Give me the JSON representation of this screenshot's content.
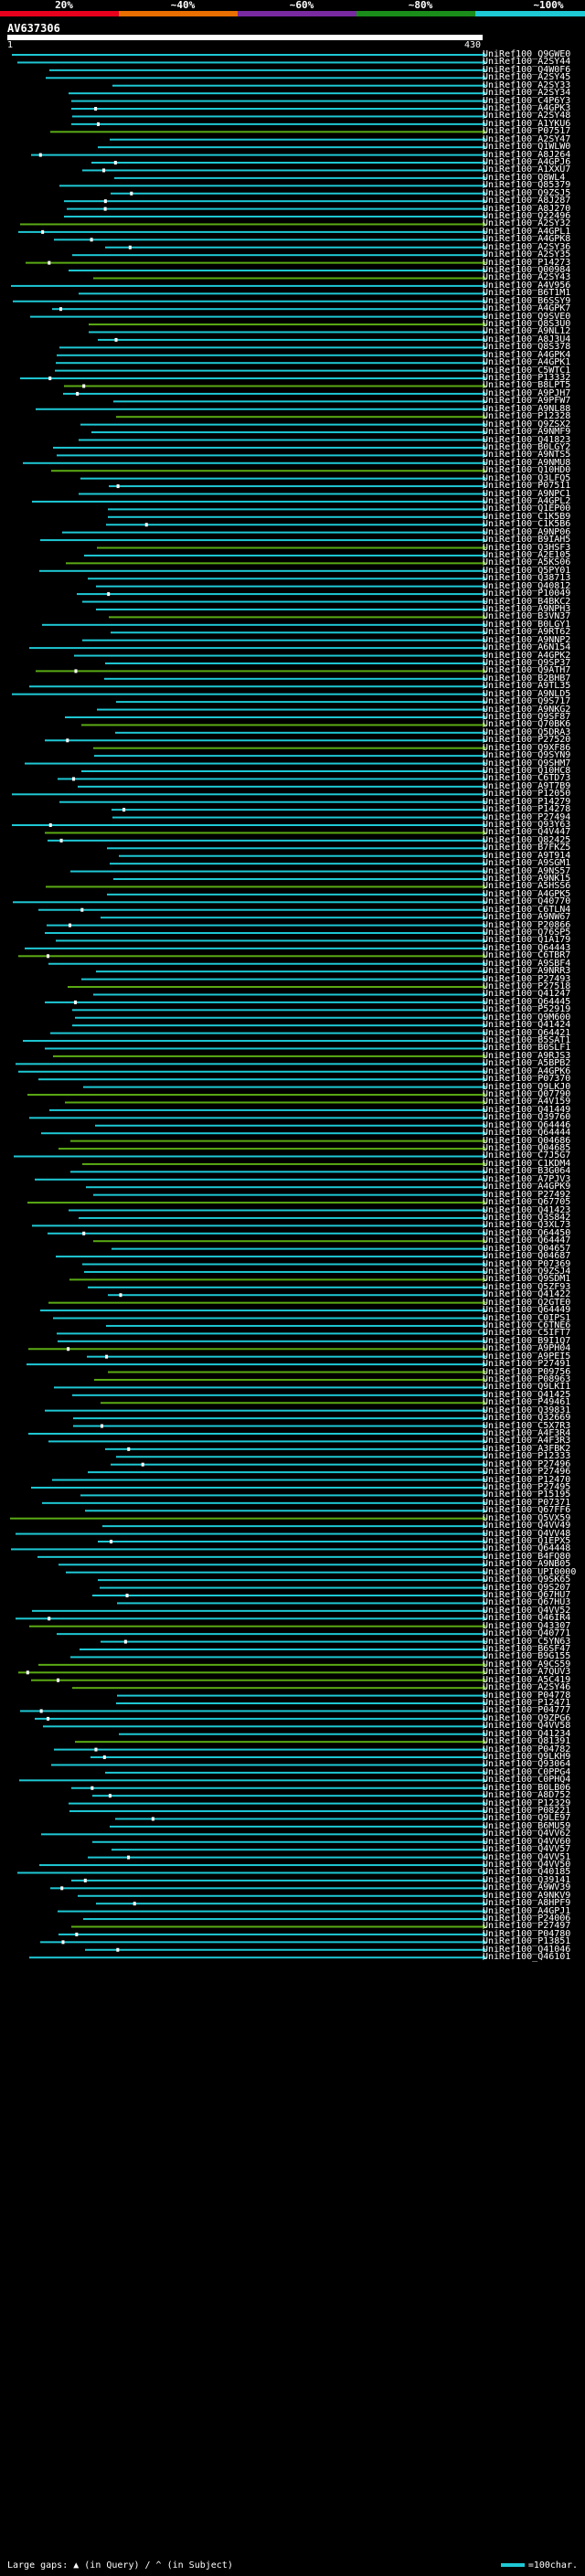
{
  "legend": {
    "labels": [
      "20%",
      "~40%",
      "~60%",
      "~80%",
      "~100%"
    ],
    "colors": [
      "#e8001c",
      "#e86f00",
      "#7a2aa0",
      "#1a8c1a",
      "#1ec8d4"
    ]
  },
  "query": {
    "title": "AV637306",
    "start": "1",
    "end": "430"
  },
  "colors": {
    "high": "#1ec8d4",
    "low": "#5aaa14"
  },
  "hits": [
    "UniRef100_Q9GWE0",
    "UniRef100_A2SY44",
    "UniRef100_Q4W0F6",
    "UniRef100_A2SY45",
    "UniRef100_A2SY33",
    "UniRef100_A2SY34",
    "UniRef100_C4P6Y3",
    "UniRef100_A4GPK3",
    "UniRef100_A2SY48",
    "UniRef100_A1YKU6",
    "UniRef100_P07517",
    "UniRef100_A2SY47",
    "UniRef100_Q1WLW0",
    "UniRef100_A8J264",
    "UniRef100_A4GPJ6",
    "UniRef100_A1XXU7",
    "UniRef100_Q8WL4",
    "UniRef100_Q85379",
    "UniRef100_Q9ZSJ5",
    "UniRef100_A8J287",
    "UniRef100_A8J270",
    "UniRef100_Q22496",
    "UniRef100_A2SY32",
    "UniRef100_A4GPL1",
    "UniRef100_A4GPK8",
    "UniRef100_A2SY36",
    "UniRef100_A2SY35",
    "UniRef100_P14273",
    "UniRef100_Q00984",
    "UniRef100_A2SY43",
    "UniRef100_A4V956",
    "UniRef100_B6T1M1",
    "UniRef100_B6SSY9",
    "UniRef100_A4GPK7",
    "UniRef100_Q9SVE0",
    "UniRef100_Q8S3U0",
    "UniRef100_A9NL12",
    "UniRef100_A8J3U4",
    "UniRef100_Q8S378",
    "UniRef100_A4GPK4",
    "UniRef100_A4GPK1",
    "UniRef100_C5WTC1",
    "UniRef100_P13332",
    "UniRef100_B8LPT5",
    "UniRef100_A9PJH7",
    "UniRef100_A9PFW7",
    "UniRef100_A9NL88",
    "UniRef100_P12328",
    "UniRef100_Q9ZSX2",
    "UniRef100_A9NMF9",
    "UniRef100_Q41823",
    "UniRef100_B0LGY2",
    "UniRef100_A9NTS5",
    "UniRef100_A9NMU8",
    "UniRef100_Q10HD0",
    "UniRef100_Q3LFQ5",
    "UniRef100_P07511",
    "UniRef100_A9NPC1",
    "UniRef100_A4GPL2",
    "UniRef100_Q1EP00",
    "UniRef100_C1K5B9",
    "UniRef100_C1K5B6",
    "UniRef100_A9NP06",
    "UniRef100_B9IAH5",
    "UniRef100_Q3HSF3",
    "UniRef100_A2E105",
    "UniRef100_A5KS06",
    "UniRef100_Q5PY01",
    "UniRef100_Q38713",
    "UniRef100_Q40812",
    "UniRef100_P10049",
    "UniRef100_B4BKC2",
    "UniRef100_A9NPH3",
    "UniRef100_B3VN37",
    "UniRef100_B0LGY1",
    "UniRef100_A9RT62",
    "UniRef100_A9NNP2",
    "UniRef100_A6N154",
    "UniRef100_A4GPK2",
    "UniRef100_Q9SP37",
    "UniRef100_Q9ATH7",
    "UniRef100_B2BHB7",
    "UniRef100_A9TL35",
    "UniRef100_A9NLD5",
    "UniRef100_Q9S717",
    "UniRef100_A9NKG2",
    "UniRef100_Q9SF87",
    "UniRef100_Q70BK6",
    "UniRef100_Q5DRA3",
    "UniRef100_P27520",
    "UniRef100_Q9XF86",
    "UniRef100_Q9SYN9",
    "UniRef100_Q9SHM7",
    "UniRef100_Q10HC8",
    "UniRef100_C6TD73",
    "UniRef100_A9T7B9",
    "UniRef100_P12050",
    "UniRef100_P14279",
    "UniRef100_P14278",
    "UniRef100_P27494",
    "UniRef100_Q93Y63",
    "UniRef100_Q4V447",
    "UniRef100_Q82425",
    "UniRef100_B7FKZ5",
    "UniRef100_A9T914",
    "UniRef100_A9SGM1",
    "UniRef100_A9NS57",
    "UniRef100_A9NK15",
    "UniRef100_A5HSS6",
    "UniRef100_A4GPK5",
    "UniRef100_Q40770",
    "UniRef100_C6TLN4",
    "UniRef100_A9NW67",
    "UniRef100_P20866",
    "UniRef100_Q76SP5",
    "UniRef100_Q1A179",
    "UniRef100_Q64443",
    "UniRef100_C6TBR7",
    "UniRef100_A9SBF4",
    "UniRef100_A9NRR3",
    "UniRef100_P27493",
    "UniRef100_P27518",
    "UniRef100_Q41247",
    "UniRef100_Q64445",
    "UniRef100_P52919",
    "UniRef100_Q9M600",
    "UniRef100_Q41424",
    "UniRef100_Q64421",
    "UniRef100_B5SAT1",
    "UniRef100_B0SLF1",
    "UniRef100_A9RJS3",
    "UniRef100_A5BPB2",
    "UniRef100_A4GPK6",
    "UniRef100_P07370",
    "UniRef100_Q9LKJ0",
    "UniRef100_Q07790",
    "UniRef100_A4V159",
    "UniRef100_Q41449",
    "UniRef100_Q39760",
    "UniRef100_Q64446",
    "UniRef100_Q64444",
    "UniRef100_Q04686",
    "UniRef100_Q04685",
    "UniRef100_C7J5G7",
    "UniRef100_C1KDM4",
    "UniRef100_B3G064",
    "UniRef100_A7PJV3",
    "UniRef100_A4GPK9",
    "UniRef100_P27492",
    "UniRef100_Q67705",
    "UniRef100_Q41423",
    "UniRef100_Q3S842",
    "UniRef100_Q3XL73",
    "UniRef100_Q64450",
    "UniRef100_Q64447",
    "UniRef100_Q04657",
    "UniRef100_Q04687",
    "UniRef100_P07369",
    "UniRef100_Q9ZSJ4",
    "UniRef100_Q9SDM1",
    "UniRef100_Q5ZF93",
    "UniRef100_Q41422",
    "UniRef100_Q2GTE0",
    "UniRef100_Q64449",
    "UniRef100_C0IPS1",
    "UniRef100_C6TNE6",
    "UniRef100_C5IFT7",
    "UniRef100_B9I1Q7",
    "UniRef100_A9PH04",
    "UniRef100_A9PEI5",
    "UniRef100_P27491",
    "UniRef100_P09756",
    "UniRef100_P08963",
    "UniRef100_Q9LKI1",
    "UniRef100_Q41425",
    "UniRef100_P49461",
    "UniRef100_Q39831",
    "UniRef100_Q32669",
    "UniRef100_C5X7R3",
    "UniRef100_A4F3R4",
    "UniRef100_A4F3R3",
    "UniRef100_A3FBK2",
    "UniRef100_P12333",
    "UniRef100_P27496",
    "UniRef100_P27496",
    "UniRef100_P12470",
    "UniRef100_P27495",
    "UniRef100_P15195",
    "UniRef100_P07371",
    "UniRef100_Q67FF6",
    "UniRef100_Q5VX59",
    "UniRef100_Q4VV49",
    "UniRef100_Q4VV48",
    "UniRef100_Q1EPX5",
    "UniRef100_Q64448",
    "UniRef100_B4FQ80",
    "UniRef100_A9NB05",
    "UniRef100_UPI0000",
    "UniRef100_Q9SK65",
    "UniRef100_Q9S207",
    "UniRef100_Q67HU7",
    "UniRef100_Q67HU3",
    "UniRef100_Q4VV52",
    "UniRef100_Q46IR4",
    "UniRef100_Q43307",
    "UniRef100_Q40771",
    "UniRef100_C5YN63",
    "UniRef100_B6SF47",
    "UniRef100_B9G155",
    "UniRef100_A9CS59",
    "UniRef100_A7QUV3",
    "UniRef100_A5C419",
    "UniRef100_A2SY46",
    "UniRef100_P04778",
    "UniRef100_P12471",
    "UniRef100_P04777",
    "UniRef100_Q9ZPG6",
    "UniRef100_Q4VV58",
    "UniRef100_Q41234",
    "UniRef100_Q81391",
    "UniRef100_P04782",
    "UniRef100_Q9LKH9",
    "UniRef100_Q93064",
    "UniRef100_C0PPG4",
    "UniRef100_C0PHQ4",
    "UniRef100_B0LB06",
    "UniRef100_A8D752",
    "UniRef100_P12329",
    "UniRef100_P08221",
    "UniRef100_Q9LE97",
    "UniRef100_B6MU59",
    "UniRef100_Q4VV62",
    "UniRef100_Q4VV60",
    "UniRef100_Q4VV57",
    "UniRef100_Q4VV51",
    "UniRef100_Q4VV50",
    "UniRef100_Q40185",
    "UniRef100_Q39141",
    "UniRef100_A9WV39",
    "UniRef100_A9NKV9",
    "UniRef100_A8HPF9",
    "UniRef100_A4GPJ1",
    "UniRef100_P24006",
    "UniRef100_P27497",
    "UniRef100_P04780",
    "UniRef100_P13851",
    "UniRef100_Q41046",
    "UniRef100_Q46101"
  ],
  "footer": {
    "left": "Large gaps: ▲ (in Query) / ^ (in Subject)",
    "right": "=100char."
  }
}
